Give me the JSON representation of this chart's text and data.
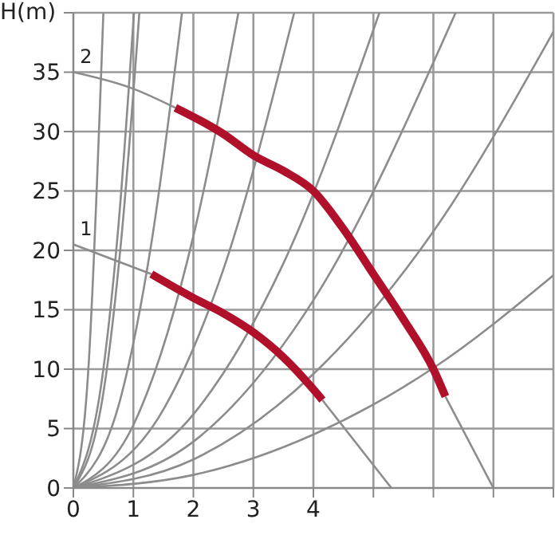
{
  "chart_data": {
    "type": "line",
    "ylabel": "H(m)",
    "color": "#8c8c8c",
    "xlim": [
      0,
      8
    ],
    "ylim": [
      0,
      40
    ],
    "xticks": [
      0,
      1,
      2,
      3,
      4,
      {
        "value": 5,
        "label": null
      },
      {
        "value": 6,
        "label": null
      },
      {
        "value": 7,
        "label": null
      },
      {
        "value": 8,
        "label": null
      }
    ],
    "yticks": [
      0,
      5,
      10,
      15,
      20,
      25,
      30,
      35,
      {
        "value": 40,
        "label": null
      }
    ],
    "grid": true,
    "marker": "none",
    "line_style": "solid",
    "annotations": [
      {
        "text": "1",
        "x": 0,
        "y": 20.5
      },
      {
        "text": "2",
        "x": 0,
        "y": 35
      }
    ],
    "series": [
      {
        "x": [
          0,
          0.25,
          0.5
        ],
        "values": [
          0,
          10,
          40
        ]
      },
      {
        "x": [
          0,
          0.5,
          0.75,
          1.01
        ],
        "values": [
          0,
          10,
          22,
          40
        ]
      },
      {
        "x": [
          0,
          0.5,
          0.8,
          1.1
        ],
        "values": [
          0,
          8,
          21,
          40
        ]
      },
      {
        "x": [
          0,
          0.8,
          1.3,
          1.81
        ],
        "values": [
          0,
          7.8,
          20.6,
          40
        ]
      },
      {
        "x": [
          0,
          1,
          2,
          2.75
        ],
        "values": [
          0,
          5.3,
          21.2,
          40
        ]
      },
      {
        "x": [
          0,
          1.5,
          2.5,
          3.68
        ],
        "values": [
          0,
          6.6,
          18.4,
          40
        ]
      },
      {
        "x": [
          0,
          2,
          3.5,
          5.1
        ],
        "values": [
          0,
          6.2,
          18.9,
          40
        ]
      },
      {
        "x": [
          0,
          2,
          4,
          6.37
        ],
        "values": [
          0,
          3.9,
          15.8,
          40
        ]
      },
      {
        "x": [
          0,
          2,
          4,
          6,
          8
        ],
        "values": [
          0,
          2.4,
          9.6,
          21.6,
          38.4
        ]
      },
      {
        "x": [
          0,
          2,
          4,
          6,
          8
        ],
        "values": [
          0,
          1.1,
          4.5,
          10.1,
          17.9
        ]
      },
      {
        "x": [
          0,
          1,
          1.7
        ],
        "values": [
          35,
          33.6,
          32
        ]
      },
      {
        "x": [
          6.2,
          7
        ],
        "values": [
          7.7,
          0
        ]
      },
      {
        "x": [
          0,
          1.3
        ],
        "values": [
          20.5,
          18
        ]
      },
      {
        "x": [
          4.15,
          5.3
        ],
        "values": [
          7.4,
          0
        ]
      },
      {
        "x": [
          1.7,
          2.5,
          3,
          3.5,
          4,
          4.5,
          5,
          5.5,
          6,
          6.2
        ],
        "values": [
          32,
          29.8,
          28,
          26.7,
          25,
          21.8,
          18,
          14.2,
          10,
          7.7
        ],
        "color": "#b0102a"
      },
      {
        "x": [
          1.3,
          2,
          2.5,
          3,
          3.5,
          4,
          4.15
        ],
        "values": [
          18,
          16,
          14.7,
          13.1,
          11,
          8.3,
          7.4
        ],
        "color": "#b0102a"
      }
    ]
  }
}
